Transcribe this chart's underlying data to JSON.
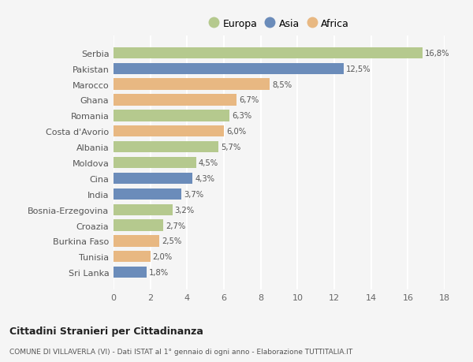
{
  "countries": [
    "Sri Lanka",
    "Tunisia",
    "Burkina Faso",
    "Croazia",
    "Bosnia-Erzegovina",
    "India",
    "Cina",
    "Moldova",
    "Albania",
    "Costa d'Avorio",
    "Romania",
    "Ghana",
    "Marocco",
    "Pakistan",
    "Serbia"
  ],
  "values": [
    1.8,
    2.0,
    2.5,
    2.7,
    3.2,
    3.7,
    4.3,
    4.5,
    5.7,
    6.0,
    6.3,
    6.7,
    8.5,
    12.5,
    16.8
  ],
  "labels": [
    "1,8%",
    "2,0%",
    "2,5%",
    "2,7%",
    "3,2%",
    "3,7%",
    "4,3%",
    "4,5%",
    "5,7%",
    "6,0%",
    "6,3%",
    "6,7%",
    "8,5%",
    "12,5%",
    "16,8%"
  ],
  "continents": [
    "Asia",
    "Africa",
    "Africa",
    "Europa",
    "Europa",
    "Asia",
    "Asia",
    "Europa",
    "Europa",
    "Africa",
    "Europa",
    "Africa",
    "Africa",
    "Asia",
    "Europa"
  ],
  "colors": {
    "Europa": "#b5c98e",
    "Asia": "#6b8cba",
    "Africa": "#e8b882"
  },
  "legend_order": [
    "Europa",
    "Asia",
    "Africa"
  ],
  "legend_colors": [
    "#b5c98e",
    "#6b8cba",
    "#e8b882"
  ],
  "xlim": [
    0,
    18
  ],
  "xticks": [
    0,
    2,
    4,
    6,
    8,
    10,
    12,
    14,
    16,
    18
  ],
  "title": "Cittadini Stranieri per Cittadinanza",
  "subtitle": "COMUNE DI VILLAVERLA (VI) - Dati ISTAT al 1° gennaio di ogni anno - Elaborazione TUTTITALIA.IT",
  "bg_color": "#f5f5f5",
  "grid_color": "#ffffff",
  "bar_height": 0.72
}
